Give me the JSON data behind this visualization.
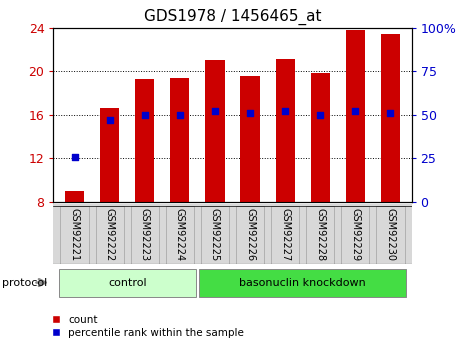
{
  "title": "GDS1978 / 1456465_at",
  "samples": [
    "GSM92221",
    "GSM92222",
    "GSM92223",
    "GSM92224",
    "GSM92225",
    "GSM92226",
    "GSM92227",
    "GSM92228",
    "GSM92229",
    "GSM92230"
  ],
  "count_values": [
    9.0,
    16.6,
    19.3,
    19.4,
    21.0,
    19.6,
    21.1,
    19.8,
    23.8,
    23.4
  ],
  "percentile_values": [
    26,
    47,
    50,
    50,
    52,
    51,
    52,
    50,
    52,
    51
  ],
  "bar_bottom": 8,
  "ylim_left": [
    8,
    24
  ],
  "ylim_right": [
    0,
    100
  ],
  "yticks_left": [
    8,
    12,
    16,
    20,
    24
  ],
  "yticks_right": [
    0,
    25,
    50,
    75,
    100
  ],
  "left_tick_labels": [
    "8",
    "12",
    "16",
    "20",
    "24"
  ],
  "right_tick_labels": [
    "0",
    "25",
    "50",
    "75",
    "100%"
  ],
  "bar_color": "#cc0000",
  "dot_color": "#0000cc",
  "bar_width": 0.55,
  "group_labels": [
    "control",
    "basonuclin knockdown"
  ],
  "control_count": 4,
  "knockdown_count": 6,
  "group_color_light": "#ccffcc",
  "group_color_dark": "#44dd44",
  "protocol_label": "protocol",
  "legend_items": [
    "count",
    "percentile rank within the sample"
  ],
  "legend_colors": [
    "#cc0000",
    "#0000cc"
  ],
  "grid_color": "#000000",
  "panel_bg": "#d8d8d8",
  "title_fontsize": 11,
  "tick_fontsize": 9,
  "label_fontsize": 8
}
